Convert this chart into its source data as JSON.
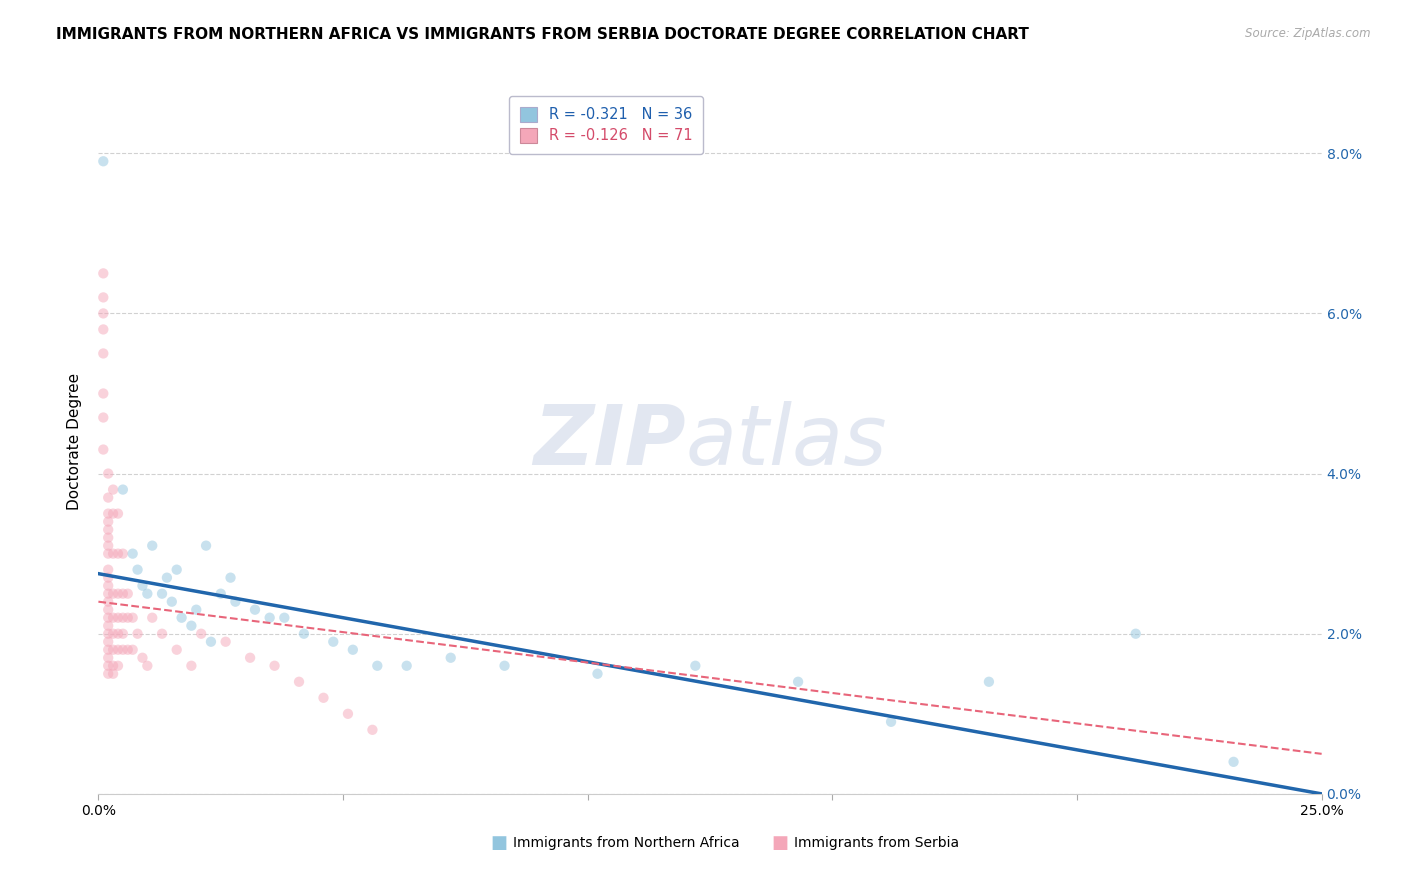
{
  "title": "IMMIGRANTS FROM NORTHERN AFRICA VS IMMIGRANTS FROM SERBIA DOCTORATE DEGREE CORRELATION CHART",
  "source": "Source: ZipAtlas.com",
  "ylabel": "Doctorate Degree",
  "legend1_label": "R = -0.321   N = 36",
  "legend2_label": "R = -0.126   N = 71",
  "xlim": [
    0.0,
    0.25
  ],
  "ylim": [
    0.0,
    0.088
  ],
  "blue_color": "#92C5DE",
  "pink_color": "#F4A7B9",
  "blue_line_color": "#2166AC",
  "pink_line_color": "#E8657A",
  "blue_scatter": [
    [
      0.001,
      0.079
    ],
    [
      0.005,
      0.038
    ],
    [
      0.007,
      0.03
    ],
    [
      0.008,
      0.028
    ],
    [
      0.009,
      0.026
    ],
    [
      0.01,
      0.025
    ],
    [
      0.011,
      0.031
    ],
    [
      0.013,
      0.025
    ],
    [
      0.014,
      0.027
    ],
    [
      0.015,
      0.024
    ],
    [
      0.016,
      0.028
    ],
    [
      0.017,
      0.022
    ],
    [
      0.019,
      0.021
    ],
    [
      0.02,
      0.023
    ],
    [
      0.022,
      0.031
    ],
    [
      0.023,
      0.019
    ],
    [
      0.025,
      0.025
    ],
    [
      0.027,
      0.027
    ],
    [
      0.028,
      0.024
    ],
    [
      0.032,
      0.023
    ],
    [
      0.035,
      0.022
    ],
    [
      0.038,
      0.022
    ],
    [
      0.042,
      0.02
    ],
    [
      0.048,
      0.019
    ],
    [
      0.052,
      0.018
    ],
    [
      0.057,
      0.016
    ],
    [
      0.063,
      0.016
    ],
    [
      0.072,
      0.017
    ],
    [
      0.083,
      0.016
    ],
    [
      0.102,
      0.015
    ],
    [
      0.122,
      0.016
    ],
    [
      0.143,
      0.014
    ],
    [
      0.162,
      0.009
    ],
    [
      0.182,
      0.014
    ],
    [
      0.212,
      0.02
    ],
    [
      0.232,
      0.004
    ]
  ],
  "pink_scatter": [
    [
      0.001,
      0.065
    ],
    [
      0.001,
      0.062
    ],
    [
      0.001,
      0.06
    ],
    [
      0.001,
      0.058
    ],
    [
      0.001,
      0.055
    ],
    [
      0.001,
      0.05
    ],
    [
      0.001,
      0.047
    ],
    [
      0.001,
      0.043
    ],
    [
      0.002,
      0.04
    ],
    [
      0.002,
      0.037
    ],
    [
      0.002,
      0.035
    ],
    [
      0.002,
      0.034
    ],
    [
      0.002,
      0.033
    ],
    [
      0.002,
      0.032
    ],
    [
      0.002,
      0.031
    ],
    [
      0.002,
      0.03
    ],
    [
      0.002,
      0.028
    ],
    [
      0.002,
      0.027
    ],
    [
      0.002,
      0.026
    ],
    [
      0.002,
      0.025
    ],
    [
      0.002,
      0.024
    ],
    [
      0.002,
      0.023
    ],
    [
      0.002,
      0.022
    ],
    [
      0.002,
      0.021
    ],
    [
      0.002,
      0.02
    ],
    [
      0.002,
      0.019
    ],
    [
      0.002,
      0.018
    ],
    [
      0.002,
      0.017
    ],
    [
      0.002,
      0.016
    ],
    [
      0.002,
      0.015
    ],
    [
      0.003,
      0.038
    ],
    [
      0.003,
      0.035
    ],
    [
      0.003,
      0.03
    ],
    [
      0.003,
      0.025
    ],
    [
      0.003,
      0.022
    ],
    [
      0.003,
      0.02
    ],
    [
      0.003,
      0.018
    ],
    [
      0.003,
      0.016
    ],
    [
      0.003,
      0.015
    ],
    [
      0.004,
      0.035
    ],
    [
      0.004,
      0.03
    ],
    [
      0.004,
      0.025
    ],
    [
      0.004,
      0.022
    ],
    [
      0.004,
      0.02
    ],
    [
      0.004,
      0.018
    ],
    [
      0.004,
      0.016
    ],
    [
      0.005,
      0.03
    ],
    [
      0.005,
      0.025
    ],
    [
      0.005,
      0.022
    ],
    [
      0.005,
      0.02
    ],
    [
      0.005,
      0.018
    ],
    [
      0.006,
      0.025
    ],
    [
      0.006,
      0.022
    ],
    [
      0.006,
      0.018
    ],
    [
      0.007,
      0.022
    ],
    [
      0.007,
      0.018
    ],
    [
      0.008,
      0.02
    ],
    [
      0.009,
      0.017
    ],
    [
      0.01,
      0.016
    ],
    [
      0.011,
      0.022
    ],
    [
      0.013,
      0.02
    ],
    [
      0.016,
      0.018
    ],
    [
      0.019,
      0.016
    ],
    [
      0.021,
      0.02
    ],
    [
      0.026,
      0.019
    ],
    [
      0.031,
      0.017
    ],
    [
      0.036,
      0.016
    ],
    [
      0.041,
      0.014
    ],
    [
      0.046,
      0.012
    ],
    [
      0.051,
      0.01
    ],
    [
      0.056,
      0.008
    ]
  ],
  "blue_trend_x": [
    0.0,
    0.25
  ],
  "blue_trend_y": [
    0.0275,
    0.0
  ],
  "pink_trend_x": [
    0.0,
    0.25
  ],
  "pink_trend_y": [
    0.024,
    0.005
  ],
  "yticks": [
    0.0,
    0.02,
    0.04,
    0.06,
    0.08
  ],
  "ytick_labels": [
    "0.0%",
    "2.0%",
    "4.0%",
    "6.0%",
    "8.0%"
  ],
  "background_color": "#ffffff",
  "grid_color": "#cccccc",
  "title_fontsize": 11,
  "axis_fontsize": 10,
  "scatter_size": 55,
  "scatter_alpha": 0.5,
  "legend_text_color_blue": "#1F5FAD",
  "legend_text_color_pink": "#D44B6A",
  "bottom_legend_blue": "Immigrants from Northern Africa",
  "bottom_legend_pink": "Immigrants from Serbia"
}
